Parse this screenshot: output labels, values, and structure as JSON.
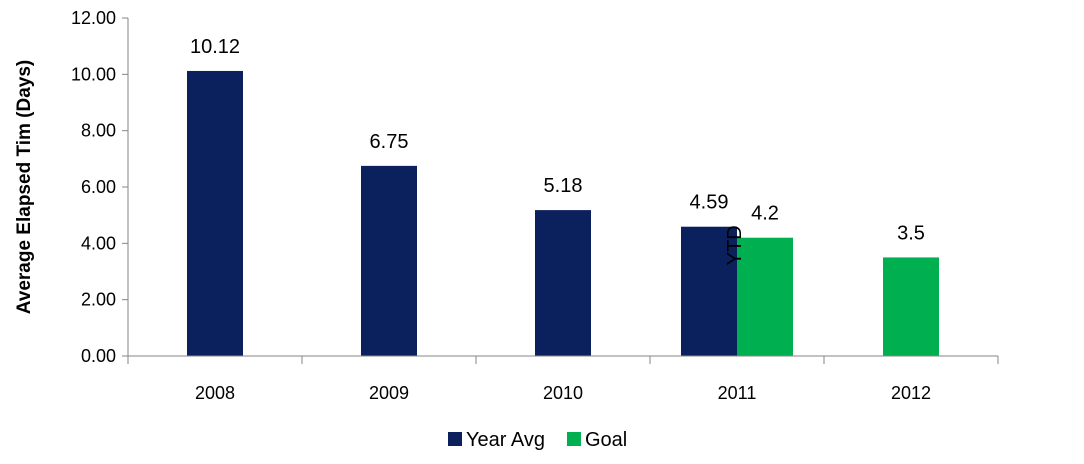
{
  "chart_data": {
    "type": "bar",
    "categories": [
      "2008",
      "2009",
      "2010",
      "2011",
      "2012"
    ],
    "series": [
      {
        "name": "Year Avg",
        "color": "#0b215e",
        "values": [
          10.12,
          6.75,
          5.18,
          4.59,
          null
        ],
        "labels": [
          "10.12",
          "6.75",
          "5.18",
          "4.59",
          ""
        ]
      },
      {
        "name": "Goal",
        "color": "#00b050",
        "values": [
          null,
          null,
          null,
          4.2,
          3.5
        ],
        "labels": [
          "",
          "",
          "",
          "4.2",
          "3.5"
        ]
      }
    ],
    "annotations": [
      {
        "text": "YTD",
        "category": "2011"
      }
    ],
    "y_ticks": [
      "0.00",
      "2.00",
      "4.00",
      "6.00",
      "8.00",
      "10.00",
      "12.00"
    ],
    "ylim": [
      0,
      12
    ],
    "xlabel": "",
    "ylabel": "Average Elapsed Tim (Days)",
    "legend_position": "bottom"
  }
}
